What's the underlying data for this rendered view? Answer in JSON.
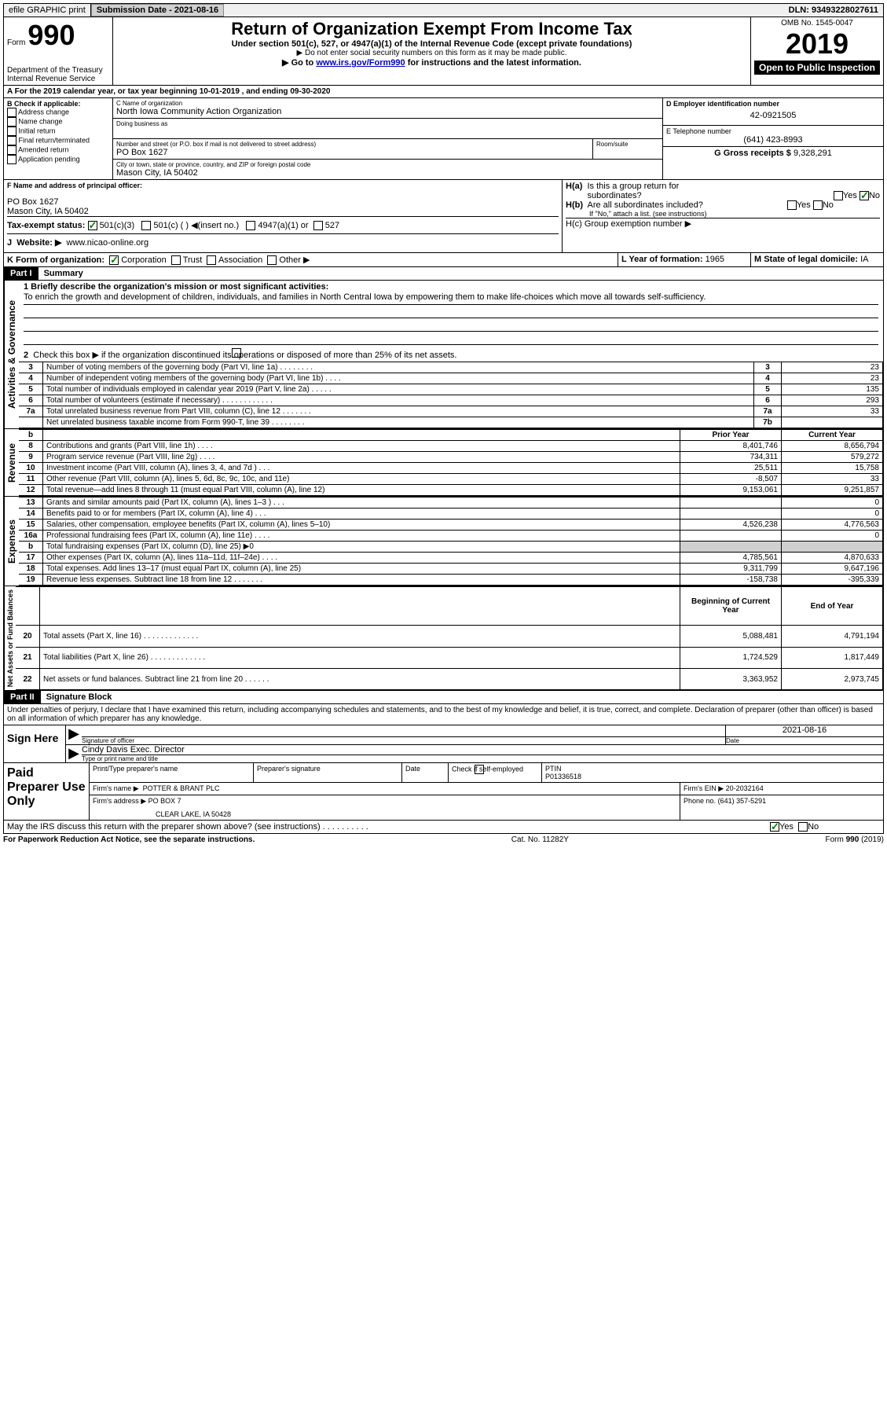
{
  "topbar": {
    "efile": "efile GRAPHIC print",
    "sub_label": "Submission Date - 2021-08-16",
    "dln": "DLN: 93493228027611"
  },
  "header": {
    "form_label": "Form",
    "form_num": "990",
    "dept": "Department of the Treasury\nInternal Revenue Service",
    "title": "Return of Organization Exempt From Income Tax",
    "sub1": "Under section 501(c), 527, or 4947(a)(1) of the Internal Revenue Code (except private foundations)",
    "sub2": "▶ Do not enter social security numbers on this form as it may be made public.",
    "sub3a": "▶ Go to ",
    "sub3link": "www.irs.gov/Form990",
    "sub3b": " for instructions and the latest information.",
    "omb": "OMB No. 1545-0047",
    "year": "2019",
    "open": "Open to Public Inspection"
  },
  "section_a": "A For the 2019 calendar year, or tax year beginning 10-01-2019    , and ending 09-30-2020",
  "b": {
    "label": "B Check if applicable:",
    "items": [
      "Address change",
      "Name change",
      "Initial return",
      "Final return/terminated",
      "Amended return",
      "Application pending"
    ]
  },
  "c": {
    "name_l": "C Name of organization",
    "name": "North Iowa Community Action Organization",
    "dba_l": "Doing business as",
    "street_l": "Number and street (or P.O. box if mail is not delivered to street address)",
    "room_l": "Room/suite",
    "street": "PO Box 1627",
    "city_l": "City or town, state or province, country, and ZIP or foreign postal code",
    "city": "Mason City, IA  50402"
  },
  "d": {
    "label": "D Employer identification number",
    "val": "42-0921505"
  },
  "e": {
    "label": "E Telephone number",
    "val": "(641) 423-8993"
  },
  "g": {
    "label": "G Gross receipts $",
    "val": "9,328,291"
  },
  "f": {
    "label": "F  Name and address of principal officer:",
    "addr1": "PO Box 1627",
    "addr2": "Mason City, IA  50402"
  },
  "h": {
    "a": "H(a)  Is this a group return for subordinates?",
    "b": "H(b)  Are all subordinates included?",
    "note": "If \"No,\" attach a list. (see instructions)",
    "c": "H(c)  Group exemption number ▶",
    "yes": "Yes",
    "no": "No"
  },
  "i": {
    "label": "Tax-exempt status:",
    "c3": "501(c)(3)",
    "c": "501(c) (  ) ◀(insert no.)",
    "a1": "4947(a)(1) or",
    "s527": "527"
  },
  "j": {
    "label": "J",
    "website_l": "Website: ▶",
    "website": "www.nicao-online.org"
  },
  "k": {
    "label": "K Form of organization:",
    "corp": "Corporation",
    "trust": "Trust",
    "assoc": "Association",
    "other": "Other ▶"
  },
  "l": {
    "label": "L Year of formation:",
    "val": "1965"
  },
  "m": {
    "label": "M State of legal domicile:",
    "val": "IA"
  },
  "part1": {
    "hdr": "Part I",
    "title": "Summary"
  },
  "mission": {
    "label": "1  Briefly describe the organization's mission or most significant activities:",
    "text": "To enrich the growth and development of children, individuals, and families in North Central Iowa by empowering them to make life-choices which move all towards self-sufficiency."
  },
  "line2": "Check this box ▶     if the organization discontinued its operations or disposed of more than 25% of its net assets.",
  "gov_label": "Activities & Governance",
  "rev_label": "Revenue",
  "exp_label": "Expenses",
  "net_label": "Net Assets or Fund Balances",
  "lines_gov": [
    {
      "n": "3",
      "d": "Number of voting members of the governing body (Part VI, line 1a)  .   .   .   .   .   .   .   .",
      "bn": "3",
      "v": "23"
    },
    {
      "n": "4",
      "d": "Number of independent voting members of the governing body (Part VI, line 1b)  .   .   .   .",
      "bn": "4",
      "v": "23"
    },
    {
      "n": "5",
      "d": "Total number of individuals employed in calendar year 2019 (Part V, line 2a)  .   .   .   .   .",
      "bn": "5",
      "v": "135"
    },
    {
      "n": "6",
      "d": "Total number of volunteers (estimate if necessary)   .   .   .   .   .   .   .   .   .   .   .   .",
      "bn": "6",
      "v": "293"
    },
    {
      "n": "7a",
      "d": "Total unrelated business revenue from Part VIII, column (C), line 12  .   .   .   .   .   .   .",
      "bn": "7a",
      "v": "33"
    },
    {
      "n": "",
      "d": "Net unrelated business taxable income from Form 990-T, line 39   .   .   .   .   .   .   .   .",
      "bn": "7b",
      "v": ""
    }
  ],
  "col_hdr": {
    "n": "b",
    "py": "Prior Year",
    "cy": "Current Year"
  },
  "lines_rev": [
    {
      "n": "8",
      "d": "Contributions and grants (Part VIII, line 1h)  .   .   .   .",
      "py": "8,401,746",
      "cy": "8,656,794"
    },
    {
      "n": "9",
      "d": "Program service revenue (Part VIII, line 2g)  .   .   .   .",
      "py": "734,311",
      "cy": "579,272"
    },
    {
      "n": "10",
      "d": "Investment income (Part VIII, column (A), lines 3, 4, and 7d )  .   .   .",
      "py": "25,511",
      "cy": "15,758"
    },
    {
      "n": "11",
      "d": "Other revenue (Part VIII, column (A), lines 5, 6d, 8c, 9c, 10c, and 11e)",
      "py": "-8,507",
      "cy": "33"
    },
    {
      "n": "12",
      "d": "Total revenue—add lines 8 through 11 (must equal Part VIII, column (A), line 12)",
      "py": "9,153,061",
      "cy": "9,251,857"
    }
  ],
  "lines_exp": [
    {
      "n": "13",
      "d": "Grants and similar amounts paid (Part IX, column (A), lines 1–3 )  .   .   .",
      "py": "",
      "cy": "0"
    },
    {
      "n": "14",
      "d": "Benefits paid to or for members (Part IX, column (A), line 4)  .   .   .",
      "py": "",
      "cy": "0"
    },
    {
      "n": "15",
      "d": "Salaries, other compensation, employee benefits (Part IX, column (A), lines 5–10)",
      "py": "4,526,238",
      "cy": "4,776,563"
    },
    {
      "n": "16a",
      "d": "Professional fundraising fees (Part IX, column (A), line 11e)  .   .   .   .",
      "py": "",
      "cy": "0"
    },
    {
      "n": "b",
      "d": "Total fundraising expenses (Part IX, column (D), line 25) ▶0",
      "py": "shade",
      "cy": "shade"
    },
    {
      "n": "17",
      "d": "Other expenses (Part IX, column (A), lines 11a–11d, 11f–24e)  .   .   .   .",
      "py": "4,785,561",
      "cy": "4,870,633"
    },
    {
      "n": "18",
      "d": "Total expenses. Add lines 13–17 (must equal Part IX, column (A), line 25)",
      "py": "9,311,799",
      "cy": "9,647,196"
    },
    {
      "n": "19",
      "d": "Revenue less expenses. Subtract line 18 from line 12  .   .   .   .   .   .   .",
      "py": "-158,738",
      "cy": "-395,339"
    }
  ],
  "net_hdr": {
    "by": "Beginning of Current Year",
    "ey": "End of Year"
  },
  "lines_net": [
    {
      "n": "20",
      "d": "Total assets (Part X, line 16)  .   .   .   .   .   .   .   .   .   .   .   .   .",
      "py": "5,088,481",
      "cy": "4,791,194"
    },
    {
      "n": "21",
      "d": "Total liabilities (Part X, line 26)  .   .   .   .   .   .   .   .   .   .   .   .   .",
      "py": "1,724,529",
      "cy": "1,817,449"
    },
    {
      "n": "22",
      "d": "Net assets or fund balances. Subtract line 21 from line 20  .   .   .   .   .   .",
      "py": "3,363,952",
      "cy": "2,973,745"
    }
  ],
  "part2": {
    "hdr": "Part II",
    "title": "Signature Block"
  },
  "decl": "Under penalties of perjury, I declare that I have examined this return, including accompanying schedules and statements, and to the best of my knowledge and belief, it is true, correct, and complete. Declaration of preparer (other than officer) is based on all information of which preparer has any knowledge.",
  "sign": {
    "here": "Sign Here",
    "sig_l": "Signature of officer",
    "date_l": "Date",
    "date": "2021-08-16",
    "name": "Cindy Davis  Exec. Director",
    "name_l": "Type or print name and title"
  },
  "prep": {
    "label": "Paid Preparer Use Only",
    "pname_l": "Print/Type preparer's name",
    "psig_l": "Preparer's signature",
    "date_l": "Date",
    "check_l": "Check      if self-employed",
    "ptin_l": "PTIN",
    "ptin": "P01336518",
    "firm_l": "Firm's name   ▶",
    "firm": "POTTER & BRANT PLC",
    "ein_l": "Firm's EIN ▶",
    "ein": "20-2032164",
    "addr_l": "Firm's address ▶",
    "addr1": "PO BOX 7",
    "addr2": "CLEAR LAKE, IA  50428",
    "phone_l": "Phone no.",
    "phone": "(641) 357-5291"
  },
  "discuss": "May the IRS discuss this return with the preparer shown above? (see instructions)   .   .   .   .   .   .   .   .   .   .",
  "footer": {
    "pra": "For Paperwork Reduction Act Notice, see the separate instructions.",
    "cat": "Cat. No. 11282Y",
    "form": "Form 990 (2019)"
  }
}
